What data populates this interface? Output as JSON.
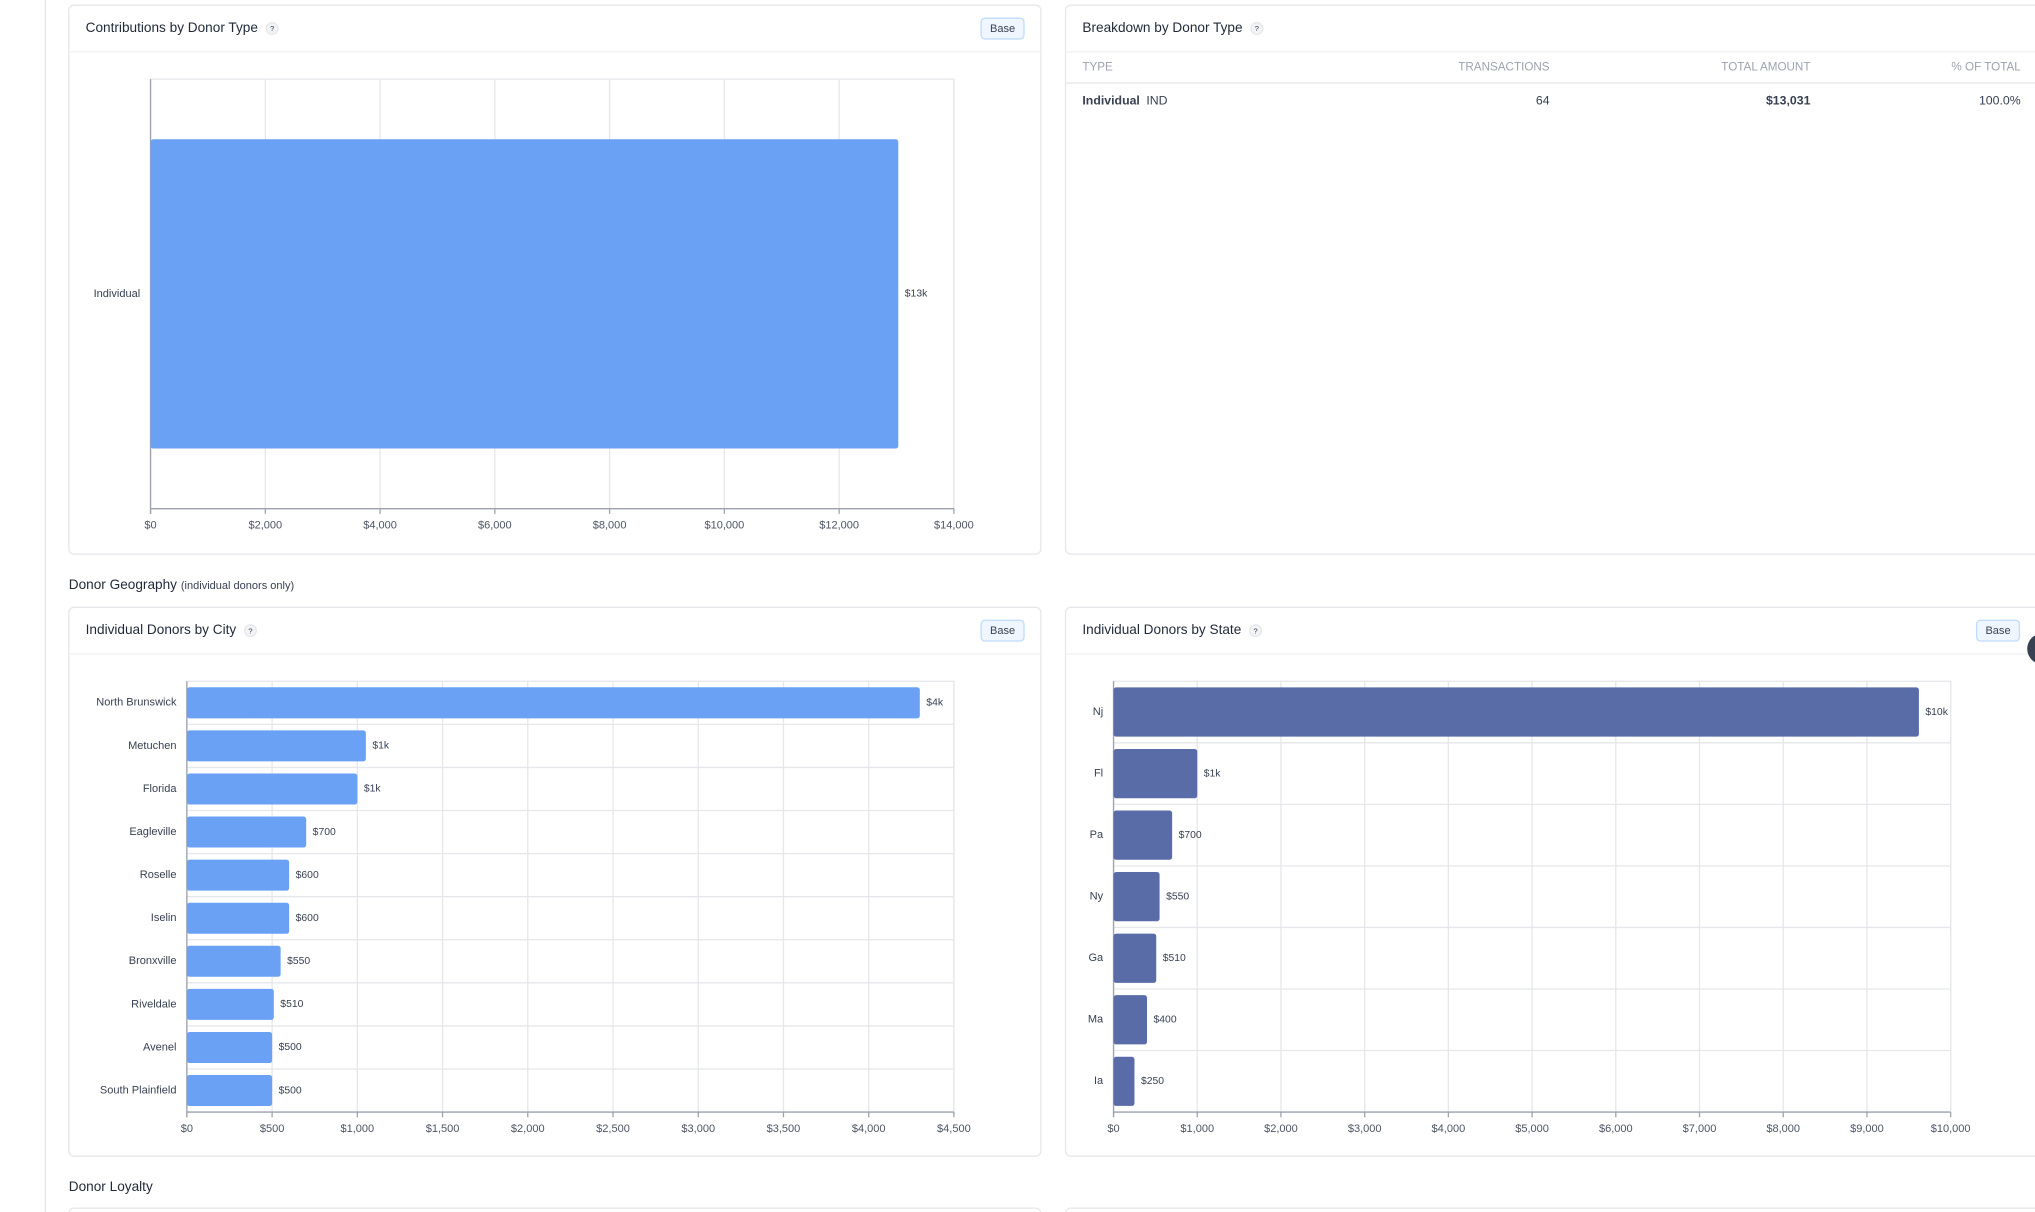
{
  "help_icon": "?",
  "base_button": "Base",
  "sections": {
    "geography": "Donor Geography",
    "geography_note": "(individual donors only)",
    "loyalty": "Donor Loyalty"
  },
  "table": {
    "title": "Breakdown by Donor Type",
    "columns": [
      "TYPE",
      "TRANSACTIONS",
      "TOTAL AMOUNT",
      "% OF TOTAL"
    ],
    "rows": [
      {
        "type": "Individual",
        "code": "IND",
        "transactions": "64",
        "total": "$13,031",
        "share": "100.0%"
      }
    ]
  },
  "chart_data": [
    {
      "type": "bar",
      "orientation": "horizontal",
      "title": "Contributions by Donor Type",
      "categories": [
        "Individual"
      ],
      "values": [
        13031
      ],
      "value_labels": [
        "$13k"
      ],
      "color": "#6aa1f5",
      "xlim": [
        0,
        14000
      ],
      "xticks": [
        {
          "value": 0,
          "label": "$0"
        },
        {
          "value": 2000,
          "label": "$2,000"
        },
        {
          "value": 4000,
          "label": "$4,000"
        },
        {
          "value": 6000,
          "label": "$6,000"
        },
        {
          "value": 8000,
          "label": "$8,000"
        },
        {
          "value": 10000,
          "label": "$10,000"
        },
        {
          "value": 12000,
          "label": "$12,000"
        },
        {
          "value": 14000,
          "label": "$14,000"
        }
      ],
      "grid": true
    },
    {
      "type": "bar",
      "orientation": "horizontal",
      "title": "Individual Donors by City",
      "categories": [
        "North Brunswick",
        "Metuchen",
        "Florida",
        "Eagleville",
        "Roselle",
        "Iselin",
        "Bronxville",
        "Riveldale",
        "Avenel",
        "South Plainfield"
      ],
      "values": [
        4300,
        1050,
        1000,
        700,
        600,
        600,
        550,
        510,
        500,
        500
      ],
      "value_labels": [
        "$4k",
        "$1k",
        "$1k",
        "$700",
        "$600",
        "$600",
        "$550",
        "$510",
        "$500",
        "$500"
      ],
      "color": "#6aa1f5",
      "xlim": [
        0,
        4500
      ],
      "xticks": [
        {
          "value": 0,
          "label": "$0"
        },
        {
          "value": 500,
          "label": "$500"
        },
        {
          "value": 1000,
          "label": "$1,000"
        },
        {
          "value": 1500,
          "label": "$1,500"
        },
        {
          "value": 2000,
          "label": "$2,000"
        },
        {
          "value": 2500,
          "label": "$2,500"
        },
        {
          "value": 3000,
          "label": "$3,000"
        },
        {
          "value": 3500,
          "label": "$3,500"
        },
        {
          "value": 4000,
          "label": "$4,000"
        },
        {
          "value": 4500,
          "label": "$4,500"
        }
      ],
      "grid": true
    },
    {
      "type": "bar",
      "orientation": "horizontal",
      "title": "Individual Donors by State",
      "categories": [
        "Nj",
        "Fl",
        "Pa",
        "Ny",
        "Ga",
        "Ma",
        "Ia"
      ],
      "values": [
        9621,
        1000,
        700,
        550,
        510,
        400,
        250
      ],
      "value_labels": [
        "$10k",
        "$1k",
        "$700",
        "$550",
        "$510",
        "$400",
        "$250"
      ],
      "color": "#5a6ca8",
      "xlim": [
        0,
        10000
      ],
      "xticks": [
        {
          "value": 0,
          "label": "$0"
        },
        {
          "value": 1000,
          "label": "$1,000"
        },
        {
          "value": 2000,
          "label": "$2,000"
        },
        {
          "value": 3000,
          "label": "$3,000"
        },
        {
          "value": 4000,
          "label": "$4,000"
        },
        {
          "value": 5000,
          "label": "$5,000"
        },
        {
          "value": 6000,
          "label": "$6,000"
        },
        {
          "value": 7000,
          "label": "$7,000"
        },
        {
          "value": 8000,
          "label": "$8,000"
        },
        {
          "value": 9000,
          "label": "$9,000"
        },
        {
          "value": 10000,
          "label": "$10,000"
        }
      ],
      "grid": true
    }
  ]
}
